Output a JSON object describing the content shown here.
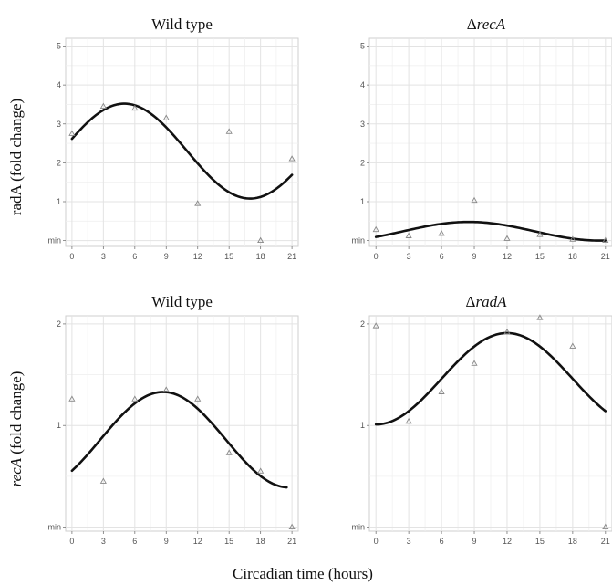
{
  "figure": {
    "xlabel": "Circadian time (hours)",
    "row_ylabels": [
      {
        "text": "radA (fold change)",
        "italic": false
      },
      {
        "text": "recA (fold change)",
        "italic": true,
        "italic_part": "recA",
        "rest": " (fold change)"
      }
    ]
  },
  "colors": {
    "curve": "#111111",
    "points": "#888888",
    "grid": "#e3e3e3",
    "frame": "#cfcfcf"
  },
  "chart_data": [
    {
      "type": "line",
      "title": "Wild type",
      "title_italic": false,
      "xlim": [
        -0.6,
        21.6
      ],
      "ylim": [
        -0.15,
        5.2
      ],
      "xticks": [
        0,
        3,
        6,
        9,
        12,
        15,
        18,
        21
      ],
      "yticks": [
        {
          "value": 0,
          "label": "min"
        },
        {
          "value": 1,
          "label": "1"
        },
        {
          "value": 2,
          "label": "2"
        },
        {
          "value": 3,
          "label": "3"
        },
        {
          "value": 4,
          "label": "4"
        },
        {
          "value": 5,
          "label": "5"
        }
      ],
      "points": [
        [
          0,
          2.75
        ],
        [
          3,
          3.45
        ],
        [
          6,
          3.4
        ],
        [
          9,
          3.15
        ],
        [
          12,
          0.95
        ],
        [
          15,
          2.8
        ],
        [
          18,
          0
        ],
        [
          21,
          2.1
        ]
      ],
      "curve": {
        "mesor": 2.3,
        "amplitude": 1.22,
        "peak_time": 5,
        "period": 24,
        "x_range": [
          0,
          21
        ]
      }
    },
    {
      "type": "line",
      "title": "ΔrecA",
      "title_prefix": "Δ",
      "title_italic_part": "recA",
      "xlim": [
        -0.6,
        21.6
      ],
      "ylim": [
        -0.15,
        5.2
      ],
      "xticks": [
        0,
        3,
        6,
        9,
        12,
        15,
        18,
        21
      ],
      "yticks": [
        {
          "value": 0,
          "label": "min"
        },
        {
          "value": 1,
          "label": "1"
        },
        {
          "value": 2,
          "label": "2"
        },
        {
          "value": 3,
          "label": "3"
        },
        {
          "value": 4,
          "label": "4"
        },
        {
          "value": 5,
          "label": "5"
        }
      ],
      "points": [
        [
          0,
          0.28
        ],
        [
          3,
          0.12
        ],
        [
          6,
          0.18
        ],
        [
          9,
          1.03
        ],
        [
          12,
          0.05
        ],
        [
          15,
          0.15
        ],
        [
          18,
          0.03
        ],
        [
          21,
          0
        ]
      ],
      "curve": {
        "mesor": 0.24,
        "amplitude": 0.24,
        "peak_time": 8.5,
        "period": 24,
        "x_range": [
          0,
          21
        ]
      }
    },
    {
      "type": "line",
      "title": "Wild type",
      "title_italic": false,
      "xlim": [
        -0.6,
        21.6
      ],
      "ylim": [
        -0.04,
        2.08
      ],
      "xticks": [
        0,
        3,
        6,
        9,
        12,
        15,
        18,
        21
      ],
      "yticks": [
        {
          "value": 0,
          "label": "min"
        },
        {
          "value": 1,
          "label": "1"
        },
        {
          "value": 2,
          "label": "2"
        }
      ],
      "points": [
        [
          0,
          1.26
        ],
        [
          3,
          0.45
        ],
        [
          6,
          1.26
        ],
        [
          9,
          1.35
        ],
        [
          12,
          1.26
        ],
        [
          15,
          0.73
        ],
        [
          18,
          0.55
        ],
        [
          21,
          0
        ]
      ],
      "curve": {
        "mesor": 0.86,
        "amplitude": 0.47,
        "peak_time": 8.7,
        "period": 24,
        "x_range": [
          0,
          20.5
        ]
      }
    },
    {
      "type": "line",
      "title": "ΔradA",
      "title_prefix": "Δ",
      "title_italic_part": "radA",
      "xlim": [
        -0.6,
        21.6
      ],
      "ylim": [
        -0.04,
        2.08
      ],
      "xticks": [
        0,
        3,
        6,
        9,
        12,
        15,
        18,
        21
      ],
      "yticks": [
        {
          "value": 0,
          "label": "min"
        },
        {
          "value": 1,
          "label": "1"
        },
        {
          "value": 2,
          "label": "2"
        }
      ],
      "points": [
        [
          0,
          1.98
        ],
        [
          3,
          1.04
        ],
        [
          6,
          1.33
        ],
        [
          9,
          1.61
        ],
        [
          12,
          1.92
        ],
        [
          15,
          2.06
        ],
        [
          18,
          1.78
        ],
        [
          21,
          0
        ]
      ],
      "curve": {
        "mesor": 1.46,
        "amplitude": 0.45,
        "peak_time": 12,
        "period": 24,
        "x_range": [
          0,
          21
        ]
      }
    }
  ]
}
